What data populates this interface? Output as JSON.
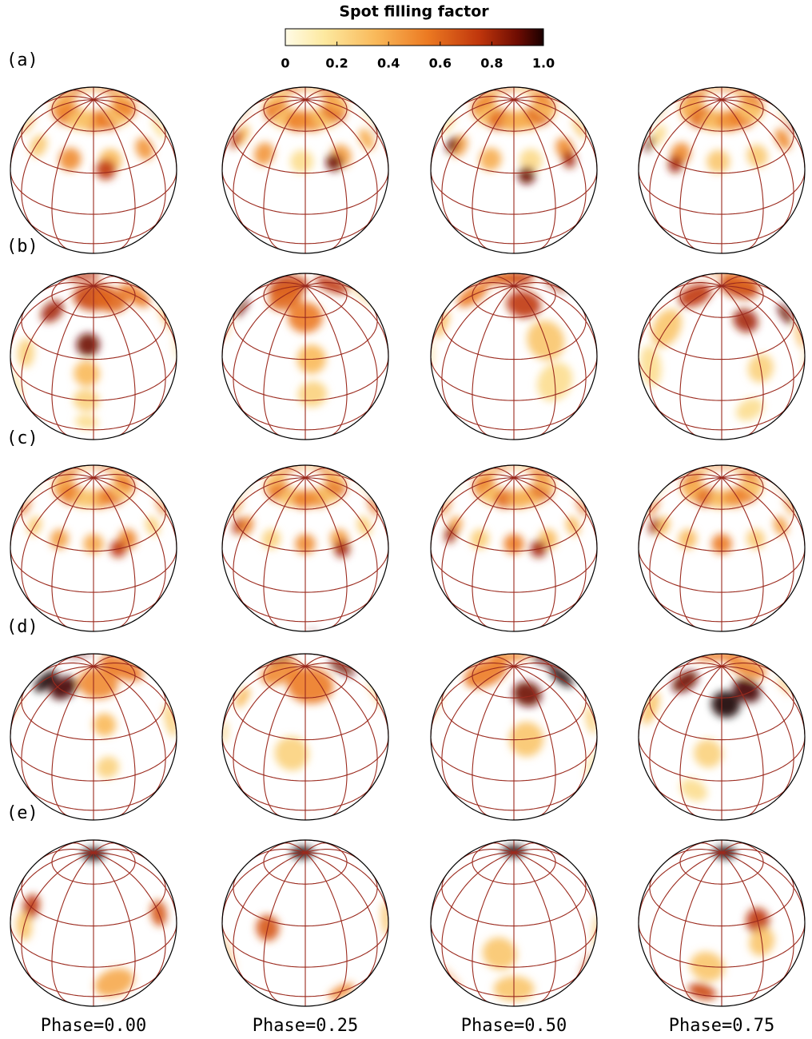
{
  "figure": {
    "colorbar": {
      "title": "Spot filling factor",
      "ticks": [
        "0",
        "0.2",
        "0.4",
        "0.6",
        "0.8",
        "1.0"
      ]
    },
    "rows": [
      "(a)",
      "(b)",
      "(c)",
      "(d)",
      "(e)"
    ],
    "phases": [
      "Phase=0.00",
      "Phase=0.25",
      "Phase=0.50",
      "Phase=0.75"
    ]
  }
}
